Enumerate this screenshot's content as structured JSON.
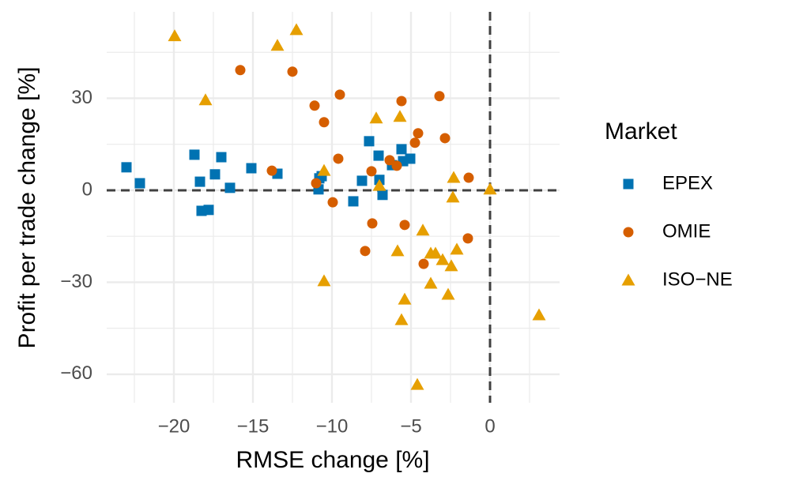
{
  "chart_data": {
    "type": "scatter",
    "x_label": "RMSE change [%]",
    "y_label": "Profit per trade change [%]",
    "legend_title": "Market",
    "legend_position": "right",
    "grid": true,
    "minor_grid": true,
    "hline": 0,
    "vline": 0,
    "xlim": [
      -24.25,
      4.4
    ],
    "ylim": [
      -69.3,
      58.2
    ],
    "xticks": [
      {
        "value": -20,
        "label": "−20"
      },
      {
        "value": -15,
        "label": "−15"
      },
      {
        "value": -10,
        "label": "−10"
      },
      {
        "value": -5,
        "label": "−5"
      },
      0
    ],
    "yticks": [
      {
        "value": -60,
        "label": "−60"
      },
      {
        "value": -30,
        "label": "−30"
      },
      0,
      30
    ],
    "series": [
      {
        "name": "EPEX",
        "color": "#0072B2",
        "shape": "square",
        "x": [
          -23.0,
          -22.15,
          -18.7,
          -18.35,
          -18.25,
          -17.8,
          -17.4,
          -17.0,
          -16.45,
          -15.1,
          -13.45,
          -10.8,
          -10.65,
          -10.85,
          -8.65,
          -8.1,
          -7.65,
          -7.05,
          -7.0,
          -6.8,
          -6.2,
          -5.6,
          -5.5,
          -5.05
        ],
        "values": [
          7.5,
          2.3,
          11.6,
          2.8,
          -6.7,
          -6.4,
          5.2,
          10.8,
          0.8,
          7.2,
          5.4,
          3.9,
          4.6,
          0.3,
          -3.6,
          3.1,
          16.0,
          11.3,
          3.4,
          -1.5,
          8.2,
          13.4,
          9.5,
          10.3
        ]
      },
      {
        "name": "OMIE",
        "color": "#D55E00",
        "shape": "circle",
        "x": [
          -15.8,
          -12.5,
          -9.5,
          -3.2,
          -5.6,
          -11.1,
          -10.5,
          -4.55,
          -2.85,
          -4.75,
          -9.6,
          -13.8,
          -7.5,
          -6.35,
          -5.9,
          -11.0,
          -1.35,
          -9.95,
          -7.45,
          -5.4,
          -1.4,
          -7.9,
          -4.2
        ],
        "values": [
          39.2,
          38.7,
          31.2,
          30.7,
          29.1,
          27.6,
          22.2,
          18.6,
          17.0,
          15.5,
          10.3,
          6.4,
          6.2,
          9.8,
          8.0,
          2.3,
          4.1,
          -3.9,
          -10.8,
          -11.3,
          -15.7,
          -19.8,
          -24.0
        ]
      },
      {
        "name": "ISO−NE",
        "color": "#E69F00",
        "shape": "triangle",
        "x": [
          -19.95,
          -12.25,
          -13.45,
          -18.0,
          -7.2,
          -5.7,
          -10.5,
          -7.0,
          -2.3,
          -2.35,
          0,
          -4.25,
          -5.85,
          -3.75,
          -3.45,
          -2.1,
          -3.0,
          -2.45,
          -10.5,
          -3.75,
          -2.65,
          -5.4,
          -5.6,
          3.1,
          -4.6
        ],
        "values": [
          50.3,
          52.3,
          47.2,
          29.4,
          23.5,
          24.0,
          6.4,
          1.5,
          4.1,
          -2.3,
          0.3,
          -13.1,
          -19.8,
          -20.6,
          -20.6,
          -19.3,
          -22.7,
          -24.7,
          -29.6,
          -30.4,
          -34.0,
          -35.6,
          -42.3,
          -40.7,
          -63.4
        ]
      }
    ]
  }
}
